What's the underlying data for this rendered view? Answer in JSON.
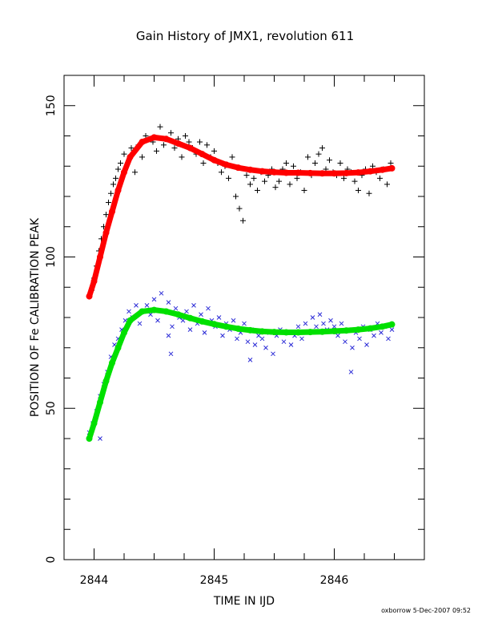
{
  "title": "Gain History of JMX1, revolution 611",
  "footer": "oxborrow  5-Dec-2007 09:52",
  "chart_data": {
    "type": "scatter",
    "title": "Gain History of JMX1, revolution 611",
    "xlabel": "TIME IN IJD",
    "ylabel": "POSITION OF Fe CALIBRATION PEAK",
    "xlim": [
      2843.75,
      2846.75
    ],
    "ylim": [
      0,
      160
    ],
    "xticks": [
      2844,
      2845,
      2846
    ],
    "yticks": [
      0,
      50,
      100,
      150
    ],
    "grid": false,
    "series": [
      {
        "role": "measurements",
        "marker": "plus",
        "color": "#000000",
        "x": [
          2843.96,
          2843.98,
          2844.0,
          2844.02,
          2844.04,
          2844.06,
          2844.08,
          2844.1,
          2844.12,
          2844.14,
          2844.16,
          2844.18,
          2844.2,
          2844.22,
          2844.25,
          2844.28,
          2844.31,
          2844.34,
          2844.37,
          2844.4,
          2844.43,
          2844.46,
          2844.49,
          2844.52,
          2844.55,
          2844.58,
          2844.61,
          2844.64,
          2844.67,
          2844.7,
          2844.73,
          2844.76,
          2844.79,
          2844.82,
          2844.85,
          2844.88,
          2844.91,
          2844.94,
          2844.97,
          2845.0,
          2845.03,
          2845.06,
          2845.09,
          2845.12,
          2845.15,
          2845.18,
          2845.21,
          2845.24,
          2845.27,
          2845.3,
          2845.33,
          2845.36,
          2845.39,
          2845.42,
          2845.45,
          2845.48,
          2845.51,
          2845.54,
          2845.57,
          2845.6,
          2845.63,
          2845.66,
          2845.69,
          2845.72,
          2845.75,
          2845.78,
          2845.81,
          2845.84,
          2845.87,
          2845.9,
          2845.93,
          2845.96,
          2845.99,
          2846.02,
          2846.05,
          2846.08,
          2846.11,
          2846.14,
          2846.17,
          2846.2,
          2846.23,
          2846.26,
          2846.29,
          2846.32,
          2846.35,
          2846.38,
          2846.41,
          2846.44,
          2846.47
        ],
        "y": [
          87,
          89,
          93,
          97,
          102,
          106,
          110,
          114,
          118,
          121,
          124,
          126,
          129,
          131,
          134,
          131,
          136,
          128,
          137,
          133,
          140,
          139,
          138,
          135,
          143,
          137,
          139,
          141,
          136,
          139,
          133,
          140,
          138,
          136,
          134,
          138,
          131,
          137,
          133,
          135,
          131,
          128,
          130,
          126,
          133,
          120,
          116,
          112,
          127,
          124,
          126,
          122,
          128,
          125,
          127,
          129,
          123,
          125,
          129,
          131,
          124,
          130,
          126,
          128,
          122,
          133,
          127,
          131,
          134,
          136,
          129,
          132,
          128,
          127,
          131,
          126,
          129,
          128,
          125,
          122,
          127,
          129,
          121,
          130,
          128,
          126,
          129,
          124,
          131
        ]
      },
      {
        "role": "fit",
        "marker": "line",
        "color": "#ff0000",
        "x": [
          2843.96,
          2844.0,
          2844.05,
          2844.1,
          2844.15,
          2844.2,
          2844.25,
          2844.3,
          2844.4,
          2844.5,
          2844.6,
          2844.7,
          2844.8,
          2844.9,
          2845.0,
          2845.1,
          2845.2,
          2845.3,
          2845.4,
          2845.5,
          2845.6,
          2845.7,
          2845.8,
          2845.9,
          2846.0,
          2846.1,
          2846.2,
          2846.3,
          2846.4,
          2846.48
        ],
        "y": [
          87,
          92,
          100,
          108,
          115,
          122,
          128,
          133,
          138,
          139.5,
          139,
          137.5,
          136,
          134,
          132,
          130.5,
          129.5,
          128.8,
          128.3,
          128,
          127.8,
          127.8,
          127.7,
          127.6,
          127.6,
          127.7,
          127.9,
          128.3,
          128.8,
          129.3
        ]
      },
      {
        "role": "measurements",
        "marker": "cross",
        "color": "#2a2ad6",
        "x": [
          2843.96,
          2843.99,
          2844.02,
          2844.05,
          2844.08,
          2844.11,
          2844.14,
          2844.17,
          2844.2,
          2844.23,
          2844.26,
          2844.29,
          2844.32,
          2844.35,
          2844.38,
          2844.41,
          2844.44,
          2844.47,
          2844.5,
          2844.53,
          2844.56,
          2844.59,
          2844.62,
          2844.65,
          2844.68,
          2844.71,
          2844.74,
          2844.77,
          2844.8,
          2844.83,
          2844.86,
          2844.89,
          2844.92,
          2844.95,
          2844.98,
          2845.01,
          2845.04,
          2845.07,
          2845.1,
          2845.13,
          2845.16,
          2845.19,
          2845.22,
          2845.25,
          2845.28,
          2845.31,
          2845.34,
          2845.37,
          2845.4,
          2845.43,
          2845.46,
          2845.49,
          2845.52,
          2845.55,
          2845.58,
          2845.61,
          2845.64,
          2845.67,
          2845.7,
          2845.73,
          2845.76,
          2845.79,
          2845.82,
          2845.85,
          2845.88,
          2845.91,
          2845.94,
          2845.97,
          2846.0,
          2846.03,
          2846.06,
          2846.09,
          2846.12,
          2846.15,
          2846.18,
          2846.21,
          2846.24,
          2846.27,
          2846.3,
          2846.33,
          2846.36,
          2846.39,
          2846.42,
          2846.45,
          2846.48,
          2844.05,
          2844.62,
          2844.64,
          2845.3,
          2846.14
        ],
        "y": [
          42,
          45,
          49,
          54,
          58,
          62,
          67,
          71,
          73,
          76,
          79,
          82,
          80,
          84,
          78,
          82,
          84,
          81,
          86,
          79,
          88,
          82,
          85,
          77,
          83,
          80,
          79,
          82,
          76,
          84,
          78,
          81,
          75,
          83,
          79,
          77,
          80,
          74,
          78,
          76,
          79,
          73,
          75,
          78,
          72,
          76,
          71,
          74,
          73,
          70,
          75,
          68,
          74,
          76,
          72,
          75,
          71,
          74,
          77,
          73,
          78,
          75,
          80,
          77,
          81,
          78,
          76,
          79,
          77,
          74,
          78,
          72,
          76,
          70,
          75,
          73,
          77,
          71,
          76,
          74,
          78,
          75,
          77,
          73,
          76,
          40,
          74,
          68,
          66,
          62
        ]
      },
      {
        "role": "fit",
        "marker": "line",
        "color": "#00e000",
        "x": [
          2843.96,
          2844.0,
          2844.05,
          2844.1,
          2844.15,
          2844.2,
          2844.25,
          2844.3,
          2844.4,
          2844.5,
          2844.6,
          2844.7,
          2844.8,
          2844.9,
          2845.0,
          2845.1,
          2845.2,
          2845.3,
          2845.4,
          2845.5,
          2845.6,
          2845.7,
          2845.8,
          2845.9,
          2846.0,
          2846.1,
          2846.2,
          2846.3,
          2846.4,
          2846.48
        ],
        "y": [
          40,
          45,
          52,
          59,
          65,
          70,
          75,
          79,
          82,
          82.5,
          82,
          81,
          79.8,
          78.7,
          77.8,
          77,
          76.3,
          75.8,
          75.4,
          75.2,
          75.1,
          75.1,
          75.2,
          75.3,
          75.5,
          75.7,
          76,
          76.4,
          77,
          77.7
        ]
      }
    ]
  }
}
